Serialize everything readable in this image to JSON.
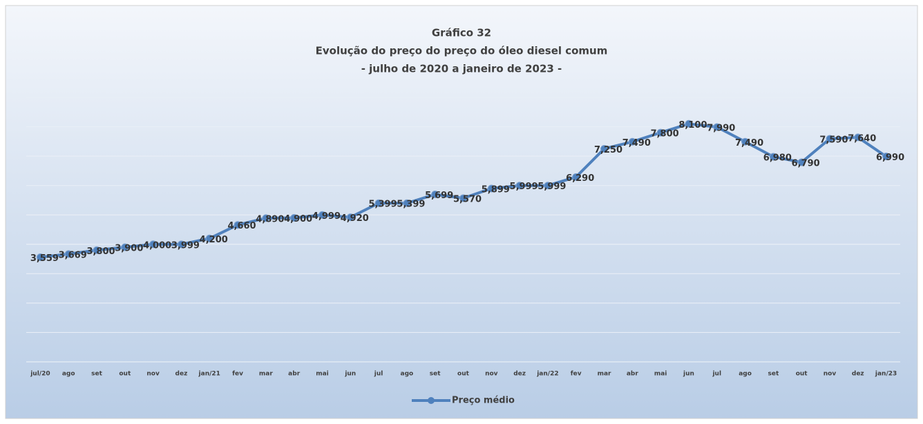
{
  "chart_data": {
    "type": "line",
    "title": "Gráfico 32",
    "subtitle": [
      "Evolução do preço do preço do óleo diesel comum",
      "- julho de 2020 a janeiro de 2023 -"
    ],
    "categories": [
      "jul/20",
      "ago",
      "set",
      "out",
      "nov",
      "dez",
      "jan/21",
      "fev",
      "mar",
      "abr",
      "mai",
      "jun",
      "jul",
      "ago",
      "set",
      "out",
      "nov",
      "dez",
      "jan/22",
      "fev",
      "mar",
      "abr",
      "mai",
      "jun",
      "jul",
      "ago",
      "set",
      "out",
      "nov",
      "dez",
      "jan/23"
    ],
    "series": [
      {
        "name": "Preço médio",
        "color": "#4f81bd",
        "values": [
          3.559,
          3.669,
          3.8,
          3.9,
          4.0,
          3.999,
          4.2,
          4.66,
          4.89,
          4.9,
          4.999,
          4.92,
          5.399,
          5.399,
          5.699,
          5.57,
          5.899,
          5.999,
          5.999,
          6.29,
          7.25,
          7.49,
          7.8,
          8.1,
          7.99,
          7.49,
          6.98,
          6.79,
          7.59,
          7.64,
          6.99
        ],
        "value_labels": [
          "3,559",
          "3,669",
          "3,800",
          "3,900",
          "4,000",
          "3,999",
          "4,200",
          "4,660",
          "4,890",
          "4,900",
          "4,999",
          "4,920",
          "5,399",
          "5,399",
          "5,699",
          "5,570",
          "5,899",
          "5,999",
          "5,999",
          "6,290",
          "7,250",
          "7,490",
          "7,800",
          "8,100",
          "7,990",
          "7,490",
          "6,980",
          "6,790",
          "7,590",
          "7,640",
          "6,990"
        ]
      }
    ],
    "ylim": [
      0,
      9
    ],
    "yticks": [
      0,
      1,
      2,
      3,
      4,
      5,
      6,
      7,
      8,
      9
    ],
    "grid": true,
    "legend": "bottom"
  }
}
